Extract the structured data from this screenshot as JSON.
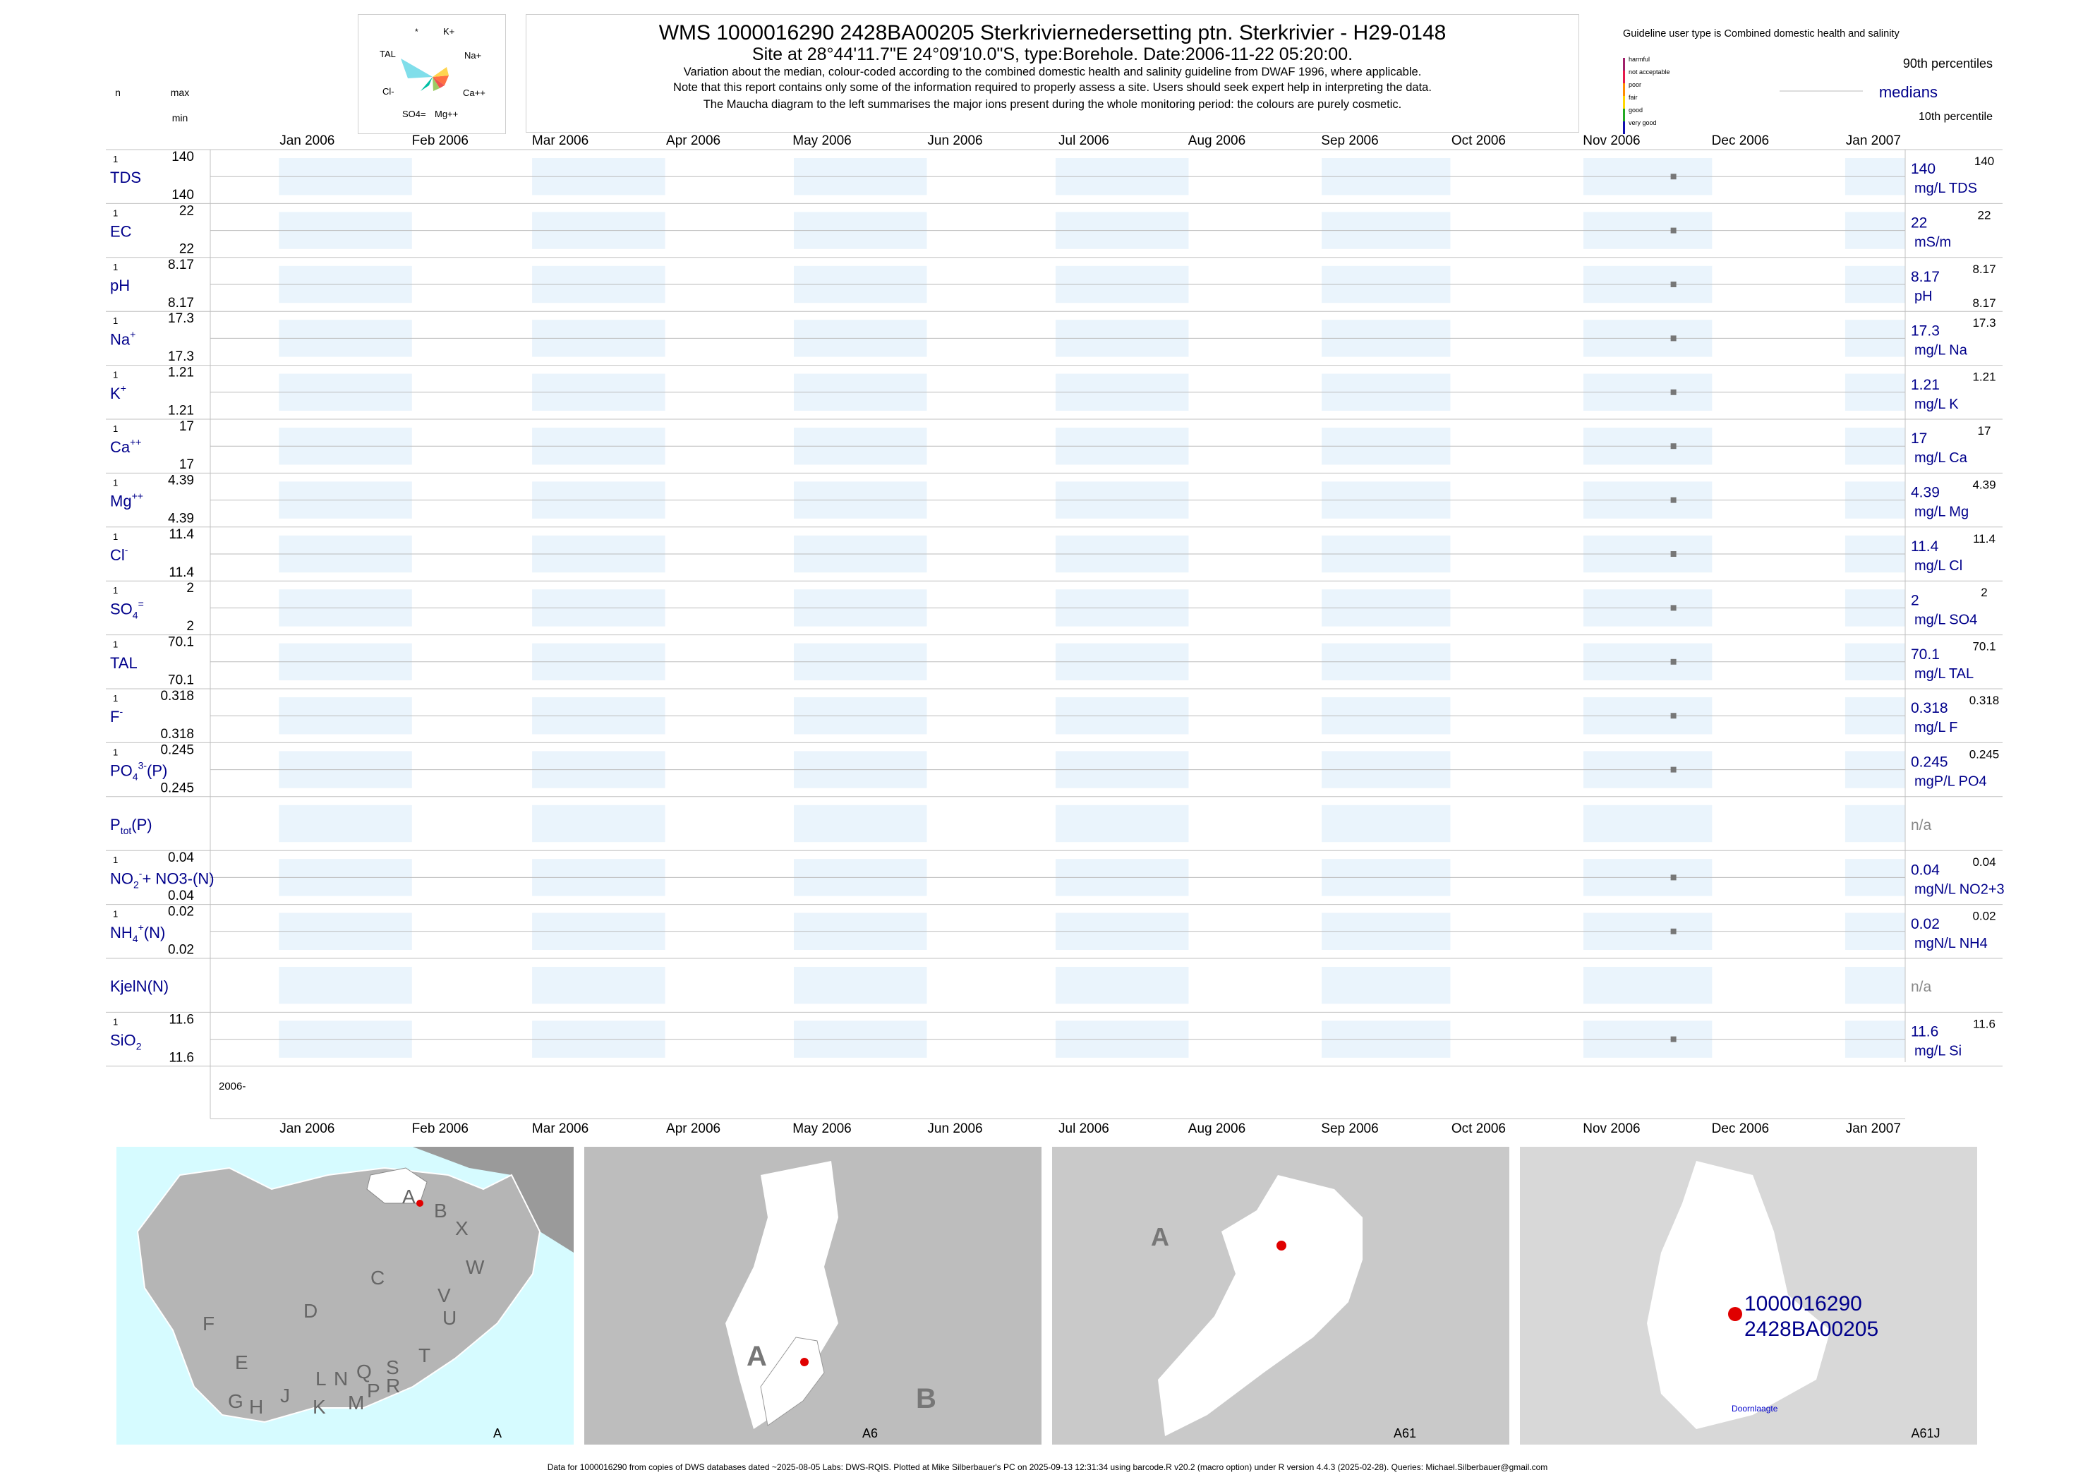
{
  "header": {
    "title": "WMS 1000016290 2428BA00205 Sterkriviernedersetting ptn. Sterkrivier - H29-0148",
    "site": "Site at 28°44'11.7\"E 24°09'10.0\"S, type:Borehole. Date:2006-11-22 05:20:00.",
    "notes": [
      "Variation about the median,  colour-coded according to the combined domestic health and salinity guideline from DWAF 1996, where applicable.",
      "Note that this report contains only some of the information required to properly assess a site. Users should seek expert help in interpreting the data.",
      "The Maucha diagram to the left summarises the major ions present during the whole monitoring period: the colours are purely cosmetic."
    ]
  },
  "maucha": {
    "labels": [
      "*",
      "K+",
      "Na+",
      "TAL",
      "Ca++",
      "Cl-",
      "SO4=",
      "Mg++"
    ]
  },
  "guideline": {
    "heading": "Guideline user type is Combined domestic health and salinity",
    "classes": [
      {
        "label": "harmful",
        "color": "#a0206a"
      },
      {
        "label": "not acceptable",
        "color": "#e6194b"
      },
      {
        "label": "poor",
        "color": "#ff8c00"
      },
      {
        "label": "fair",
        "color": "#ffd700"
      },
      {
        "label": "good",
        "color": "#22a822"
      },
      {
        "label": "very good",
        "color": "#1010b0"
      }
    ],
    "p90_label": "90th percentiles",
    "median_label": "medians",
    "p10_label": "10th percentile"
  },
  "left_headers": {
    "n": "n",
    "max": "max",
    "min": "min"
  },
  "chart_data": {
    "type": "scatter",
    "x_axis": {
      "ticks": [
        "Jan 2006",
        "Feb 2006",
        "Mar 2006",
        "Apr 2006",
        "May 2006",
        "Jun 2006",
        "Jul 2006",
        "Aug 2006",
        "Sep 2006",
        "Oct 2006",
        "Nov 2006",
        "Dec 2006",
        "Jan 2007"
      ],
      "range": [
        "2005-12-16",
        "2007-01-15"
      ],
      "year_label": "2006-"
    },
    "colors": {
      "shade": "#eaf4fc",
      "point": "#777777",
      "text": "#00008b",
      "grid": "#c0c0c0"
    },
    "series": [
      {
        "name": "TDS",
        "sup": "",
        "sub": "",
        "n": "1",
        "max": "140",
        "min": "140",
        "date": "2006-11-22",
        "value": 140,
        "median": "140",
        "unit": "mg/L TDS",
        "p90": "140",
        "p10": ""
      },
      {
        "name": "EC",
        "sup": "",
        "sub": "",
        "n": "1",
        "max": "22",
        "min": "22",
        "date": "2006-11-22",
        "value": 22,
        "median": "22",
        "unit": "mS/m",
        "p90": "22",
        "p10": ""
      },
      {
        "name": "pH",
        "sup": "",
        "sub": "",
        "n": "1",
        "max": "8.17",
        "min": "8.17",
        "date": "2006-11-22",
        "value": 8.17,
        "median": "8.17",
        "unit": "pH",
        "p90": "8.17",
        "p10": "8.17"
      },
      {
        "name": "Na",
        "sup": "+",
        "sub": "",
        "n": "1",
        "max": "17.3",
        "min": "17.3",
        "date": "2006-11-22",
        "value": 17.3,
        "median": "17.3",
        "unit": "mg/L Na",
        "p90": "17.3",
        "p10": ""
      },
      {
        "name": "K",
        "sup": "+",
        "sub": "",
        "n": "1",
        "max": "1.21",
        "min": "1.21",
        "date": "2006-11-22",
        "value": 1.21,
        "median": "1.21",
        "unit": "mg/L K",
        "p90": "1.21",
        "p10": ""
      },
      {
        "name": "Ca",
        "sup": "++",
        "sub": "",
        "n": "1",
        "max": "17",
        "min": "17",
        "date": "2006-11-22",
        "value": 17,
        "median": "17",
        "unit": "mg/L Ca",
        "p90": "17",
        "p10": ""
      },
      {
        "name": "Mg",
        "sup": "++",
        "sub": "",
        "n": "1",
        "max": "4.39",
        "min": "4.39",
        "date": "2006-11-22",
        "value": 4.39,
        "median": "4.39",
        "unit": "mg/L Mg",
        "p90": "4.39",
        "p10": ""
      },
      {
        "name": "Cl",
        "sup": "-",
        "sub": "",
        "n": "1",
        "max": "11.4",
        "min": "11.4",
        "date": "2006-11-22",
        "value": 11.4,
        "median": "11.4",
        "unit": "mg/L Cl",
        "p90": "11.4",
        "p10": ""
      },
      {
        "name": "SO",
        "sup": "=",
        "sub": "4",
        "n": "1",
        "max": "2",
        "min": "2",
        "date": "2006-11-22",
        "value": 2,
        "median": "2",
        "unit": "mg/L SO4",
        "p90": "2",
        "p10": ""
      },
      {
        "name": "TAL",
        "sup": "",
        "sub": "",
        "n": "1",
        "max": "70.1",
        "min": "70.1",
        "date": "2006-11-22",
        "value": 70.1,
        "median": "70.1",
        "unit": "mg/L TAL",
        "p90": "70.1",
        "p10": ""
      },
      {
        "name": "F",
        "sup": "-",
        "sub": "",
        "n": "1",
        "max": "0.318",
        "min": "0.318",
        "date": "2006-11-22",
        "value": 0.318,
        "median": "0.318",
        "unit": "mg/L F",
        "p90": "0.318",
        "p10": ""
      },
      {
        "name": "PO",
        "sup": "3-",
        "sub": "4",
        "suffix": "(P)",
        "n": "1",
        "max": "0.245",
        "min": "0.245",
        "date": "2006-11-22",
        "value": 0.245,
        "median": "0.245",
        "unit": "mgP/L PO4",
        "p90": "0.245",
        "p10": ""
      },
      {
        "name": "P",
        "sup": "",
        "sub": "tot",
        "suffix": "(P)",
        "n": "",
        "max": "",
        "min": "",
        "date": "",
        "value": null,
        "median": "n/a",
        "unit": "",
        "p90": "",
        "p10": ""
      },
      {
        "name": "NO",
        "sup": "-",
        "sub": "2",
        "suffix": "+ NO3-(N)",
        "n": "1",
        "max": "0.04",
        "min": "0.04",
        "date": "2006-11-22",
        "value": 0.04,
        "median": "0.04",
        "unit": "mgN/L NO2+3",
        "p90": "0.04",
        "p10": ""
      },
      {
        "name": "NH",
        "sup": "+",
        "sub": "4",
        "suffix": "(N)",
        "n": "1",
        "max": "0.02",
        "min": "0.02",
        "date": "2006-11-22",
        "value": 0.02,
        "median": "0.02",
        "unit": "mgN/L NH4",
        "p90": "0.02",
        "p10": ""
      },
      {
        "name": "KjelN(N)",
        "sup": "",
        "sub": "",
        "n": "",
        "max": "",
        "min": "",
        "date": "",
        "value": null,
        "median": "n/a",
        "unit": "",
        "p90": "",
        "p10": ""
      },
      {
        "name": "SiO",
        "sup": "",
        "sub": "2",
        "n": "1",
        "max": "11.6",
        "min": "11.6",
        "date": "2006-11-22",
        "value": 11.6,
        "median": "11.6",
        "unit": "mg/L Si",
        "p90": "11.6",
        "p10": ""
      }
    ]
  },
  "maps": [
    {
      "id": "A",
      "caption": "A",
      "labels": [
        "A",
        "B",
        "X",
        "W",
        "C",
        "V",
        "U",
        "D",
        "T",
        "F",
        "E",
        "S",
        "R",
        "L",
        "N",
        "Q",
        "P",
        "G",
        "H",
        "J",
        "K",
        "M"
      ]
    },
    {
      "id": "A6",
      "caption": "A6",
      "labels": [
        "A",
        "B"
      ]
    },
    {
      "id": "A61",
      "caption": "A61",
      "labels": [
        "A"
      ]
    },
    {
      "id": "A61J",
      "caption": "A61J",
      "labels": [
        "1000016290",
        "2428BA00205",
        "Doornlaagte"
      ]
    }
  ],
  "footer": "Data for 1000016290 from copies of DWS databases dated ~2025-08-05 Labs: DWS-RQIS. Plotted at Mike Silberbauer's PC on 2025-09-13 12:31:34 using barcode.R v20.2 (macro option) under R version 4.4.3 (2025-02-28). Queries: Michael.Silberbauer@gmail.com"
}
